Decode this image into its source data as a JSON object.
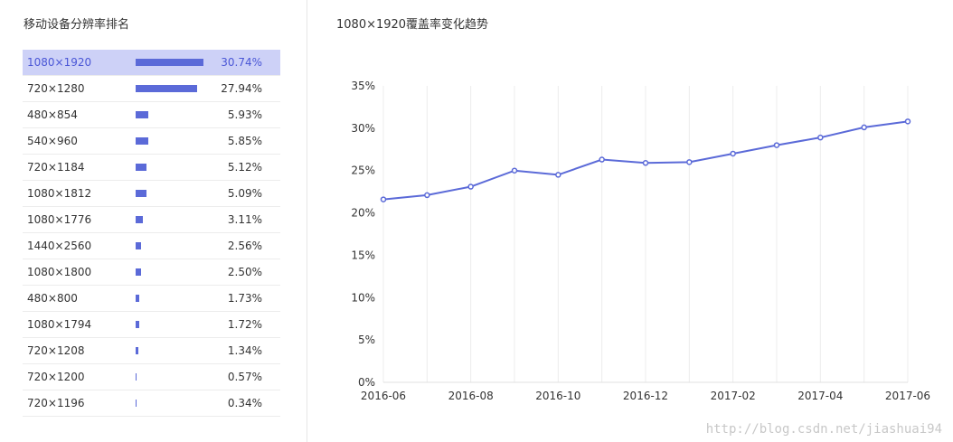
{
  "left_panel": {
    "title": "移动设备分辨率排名",
    "items": [
      {
        "name": "1080×1920",
        "value": "30.74%",
        "pct": 30.74,
        "selected": true
      },
      {
        "name": "720×1280",
        "value": "27.94%",
        "pct": 27.94
      },
      {
        "name": "480×854",
        "value": "5.93%",
        "pct": 5.93
      },
      {
        "name": "540×960",
        "value": "5.85%",
        "pct": 5.85
      },
      {
        "name": "720×1184",
        "value": "5.12%",
        "pct": 5.12
      },
      {
        "name": "1080×1812",
        "value": "5.09%",
        "pct": 5.09
      },
      {
        "name": "1080×1776",
        "value": "3.11%",
        "pct": 3.11
      },
      {
        "name": "1440×2560",
        "value": "2.56%",
        "pct": 2.56
      },
      {
        "name": "1080×1800",
        "value": "2.50%",
        "pct": 2.5
      },
      {
        "name": "480×800",
        "value": "1.73%",
        "pct": 1.73
      },
      {
        "name": "1080×1794",
        "value": "1.72%",
        "pct": 1.72
      },
      {
        "name": "720×1208",
        "value": "1.34%",
        "pct": 1.34
      },
      {
        "name": "720×1200",
        "value": "0.57%",
        "pct": 0.57
      },
      {
        "name": "720×1196",
        "value": "0.34%",
        "pct": 0.34
      }
    ]
  },
  "chart_data": {
    "type": "line",
    "title": "1080×1920覆盖率变化趋势",
    "x": [
      "2016-06",
      "2016-07",
      "2016-08",
      "2016-09",
      "2016-10",
      "2016-11",
      "2016-12",
      "2017-01",
      "2017-02",
      "2017-03",
      "2017-04",
      "2017-05",
      "2017-06"
    ],
    "x_tick_labels": [
      "2016-06",
      "2016-08",
      "2016-10",
      "2016-12",
      "2017-02",
      "2017-04",
      "2017-06"
    ],
    "series": [
      {
        "values": [
          21.6,
          22.1,
          23.1,
          25.0,
          24.5,
          26.3,
          25.9,
          26.0,
          27.0,
          28.0,
          28.9,
          30.1,
          30.8
        ]
      }
    ],
    "ylim": [
      0,
      35
    ],
    "y_ticks": [
      "0%",
      "5%",
      "10%",
      "15%",
      "20%",
      "25%",
      "30%",
      "35%"
    ],
    "grid": "vertical",
    "line_color": "#5b6ad8"
  },
  "watermark": "http://blog.csdn.net/jiashuai94"
}
